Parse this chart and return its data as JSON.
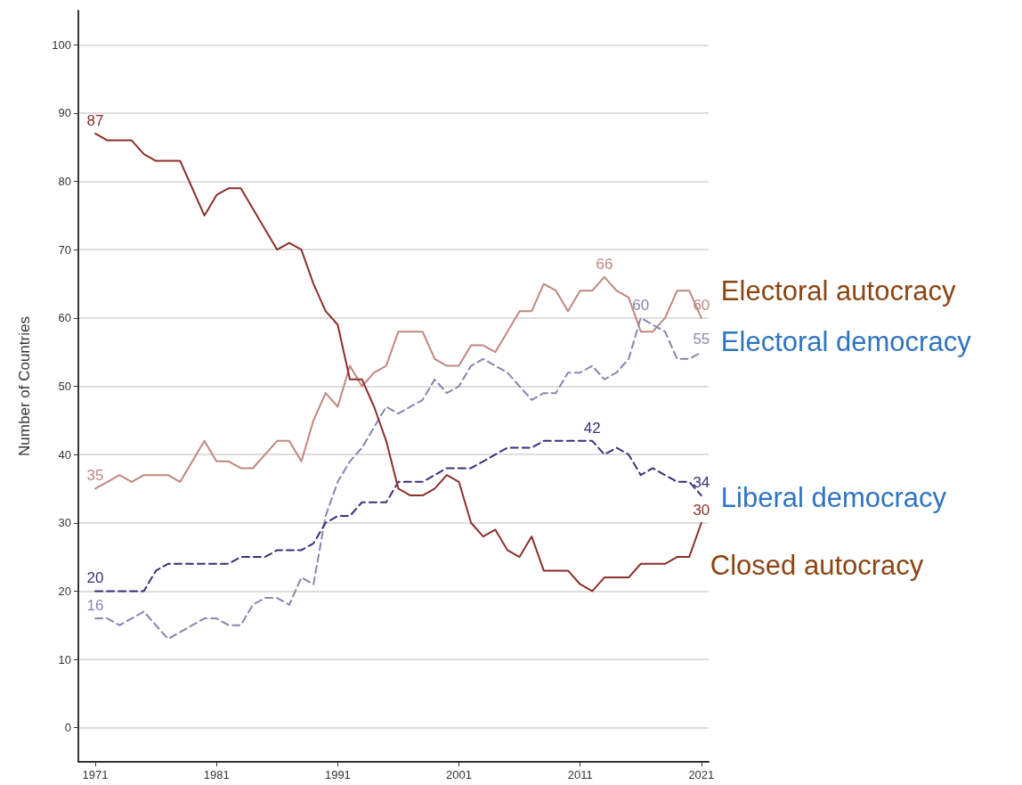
{
  "chart_data": {
    "type": "line",
    "ylabel": "Number of Countries",
    "x": [
      1971,
      1972,
      1973,
      1974,
      1975,
      1976,
      1977,
      1978,
      1979,
      1980,
      1981,
      1982,
      1983,
      1984,
      1985,
      1986,
      1987,
      1988,
      1989,
      1990,
      1991,
      1992,
      1993,
      1994,
      1995,
      1996,
      1997,
      1998,
      1999,
      2000,
      2001,
      2002,
      2003,
      2004,
      2005,
      2006,
      2007,
      2008,
      2009,
      2010,
      2011,
      2012,
      2013,
      2014,
      2015,
      2016,
      2017,
      2018,
      2019,
      2020,
      2021
    ],
    "xlim": [
      1969.6,
      2021.6
    ],
    "xticks": [
      1971,
      1981,
      1991,
      2001,
      2011,
      2021
    ],
    "ylim": [
      -5,
      105
    ],
    "yticks": [
      0,
      10,
      20,
      30,
      40,
      50,
      60,
      70,
      80,
      90,
      100
    ],
    "grid": "y",
    "legend": false,
    "marker": "none",
    "series": [
      {
        "name": "Electoral autocracy",
        "color": "#c0877f",
        "line_style": "solid",
        "values": [
          35,
          36,
          37,
          36,
          37,
          37,
          37,
          36,
          39,
          42,
          39,
          39,
          38,
          38,
          40,
          42,
          42,
          39,
          45,
          49,
          47,
          53,
          50,
          52,
          53,
          58,
          58,
          58,
          54,
          53,
          53,
          56,
          56,
          55,
          58,
          61,
          61,
          65,
          64,
          61,
          64,
          64,
          66,
          64,
          63,
          58,
          58,
          60,
          64,
          64,
          60
        ],
        "value_labels": [
          "35",
          null,
          null,
          null,
          null,
          null,
          null,
          null,
          null,
          null,
          null,
          null,
          null,
          null,
          null,
          null,
          null,
          null,
          null,
          null,
          null,
          null,
          null,
          null,
          null,
          null,
          null,
          null,
          null,
          null,
          null,
          null,
          null,
          null,
          null,
          null,
          null,
          null,
          null,
          null,
          null,
          null,
          "66",
          null,
          null,
          null,
          null,
          null,
          null,
          null,
          "60"
        ]
      },
      {
        "name": "Electoral democracy",
        "color": "#8886b0",
        "line_style": "dashed",
        "values": [
          16,
          16,
          15,
          16,
          17,
          15,
          13,
          14,
          15,
          16,
          16,
          15,
          15,
          18,
          19,
          19,
          18,
          22,
          21,
          31,
          36,
          39,
          41,
          44,
          47,
          46,
          47,
          48,
          51,
          49,
          50,
          53,
          54,
          53,
          52,
          50,
          48,
          49,
          49,
          52,
          52,
          53,
          51,
          52,
          54,
          60,
          59,
          58,
          54,
          54,
          55
        ],
        "value_labels": [
          "16",
          null,
          null,
          null,
          null,
          null,
          null,
          null,
          null,
          null,
          null,
          null,
          null,
          null,
          null,
          null,
          null,
          null,
          null,
          null,
          null,
          null,
          null,
          null,
          null,
          null,
          null,
          null,
          null,
          null,
          null,
          null,
          null,
          null,
          null,
          null,
          null,
          null,
          null,
          null,
          null,
          null,
          null,
          null,
          null,
          "60",
          null,
          null,
          null,
          null,
          "55"
        ]
      },
      {
        "name": "Liberal democracy",
        "color": "#3a2f78",
        "line_style": "dashed",
        "values": [
          20,
          20,
          20,
          20,
          20,
          23,
          24,
          24,
          24,
          24,
          24,
          24,
          25,
          25,
          25,
          26,
          26,
          26,
          27,
          30,
          31,
          31,
          33,
          33,
          33,
          36,
          36,
          36,
          37,
          38,
          38,
          38,
          39,
          40,
          41,
          41,
          41,
          42,
          42,
          42,
          42,
          42,
          40,
          41,
          40,
          37,
          38,
          37,
          36,
          36,
          34
        ],
        "value_labels": [
          "20",
          null,
          null,
          null,
          null,
          null,
          null,
          null,
          null,
          null,
          null,
          null,
          null,
          null,
          null,
          null,
          null,
          null,
          null,
          null,
          null,
          null,
          null,
          null,
          null,
          null,
          null,
          null,
          null,
          null,
          null,
          null,
          null,
          null,
          null,
          null,
          null,
          null,
          null,
          null,
          null,
          "42",
          null,
          null,
          null,
          null,
          null,
          null,
          null,
          null,
          "34"
        ]
      },
      {
        "name": "Closed autocracy",
        "color": "#8b2f2a",
        "line_style": "solid",
        "values": [
          87,
          86,
          86,
          86,
          84,
          83,
          83,
          83,
          79,
          75,
          78,
          79,
          79,
          76,
          73,
          70,
          71,
          70,
          65,
          61,
          59,
          51,
          51,
          47,
          42,
          35,
          34,
          34,
          35,
          37,
          36,
          30,
          28,
          29,
          26,
          25,
          28,
          23,
          23,
          23,
          21,
          20,
          22,
          22,
          22,
          24,
          24,
          24,
          25,
          25,
          30
        ],
        "value_labels": [
          "87",
          null,
          null,
          null,
          null,
          null,
          null,
          null,
          null,
          null,
          null,
          null,
          null,
          null,
          null,
          null,
          null,
          null,
          null,
          null,
          null,
          null,
          null,
          null,
          null,
          null,
          null,
          null,
          null,
          null,
          null,
          null,
          null,
          null,
          null,
          null,
          null,
          null,
          null,
          null,
          null,
          null,
          null,
          null,
          null,
          null,
          null,
          null,
          null,
          null,
          "30"
        ]
      }
    ]
  }
}
